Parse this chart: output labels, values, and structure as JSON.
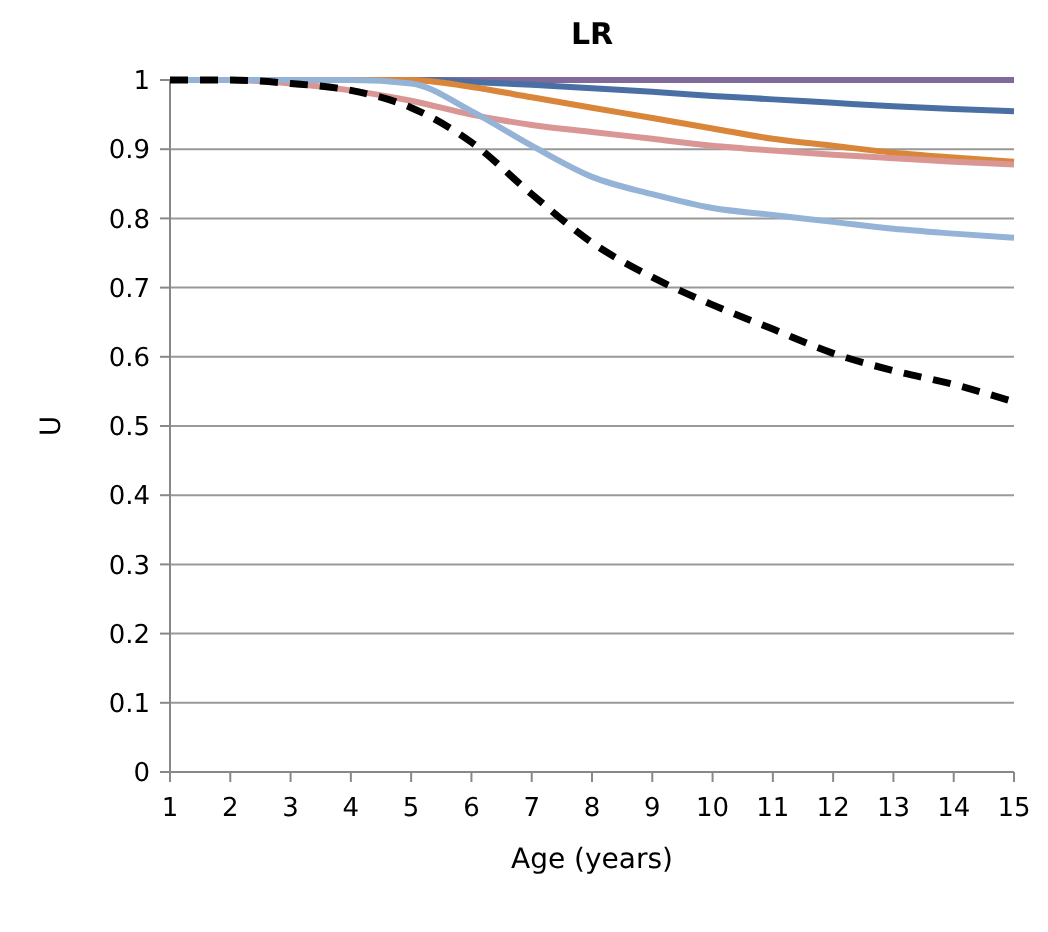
{
  "chart_data": {
    "type": "line",
    "title": "LR",
    "xlabel": "Age (years)",
    "ylabel": "U",
    "x": [
      1,
      2,
      3,
      4,
      5,
      6,
      7,
      8,
      9,
      10,
      11,
      12,
      13,
      14,
      15
    ],
    "xlim": [
      1,
      15
    ],
    "xticks": [
      1,
      2,
      3,
      4,
      5,
      6,
      7,
      8,
      9,
      10,
      11,
      12,
      13,
      14,
      15
    ],
    "ylim": [
      0,
      1
    ],
    "yticks": [
      0,
      0.1,
      0.2,
      0.3,
      0.4,
      0.5,
      0.6,
      0.7,
      0.8,
      0.9,
      1
    ],
    "grid": "y",
    "marker": "none",
    "series": [
      {
        "color": "#7f6a9a",
        "values": [
          1,
          1,
          1,
          1,
          1,
          1,
          1,
          1,
          1,
          1,
          1,
          1,
          1,
          1,
          1
        ]
      },
      {
        "color": "#4a6fa5",
        "values": [
          1,
          1,
          1,
          1,
          1,
          0.997,
          0.993,
          0.988,
          0.983,
          0.977,
          0.972,
          0.967,
          0.962,
          0.958,
          0.955
        ]
      },
      {
        "color": "#d9863a",
        "values": [
          1,
          1,
          1,
          1,
          1,
          0.99,
          0.975,
          0.96,
          0.945,
          0.93,
          0.915,
          0.905,
          0.895,
          0.888,
          0.882
        ]
      },
      {
        "color": "#d99694",
        "values": [
          1,
          1,
          0.995,
          0.985,
          0.97,
          0.95,
          0.935,
          0.925,
          0.915,
          0.905,
          0.898,
          0.892,
          0.887,
          0.882,
          0.878
        ]
      },
      {
        "color": "#95b3d7",
        "values": [
          1,
          1,
          1,
          1,
          0.995,
          0.955,
          0.905,
          0.86,
          0.835,
          0.815,
          0.805,
          0.795,
          0.785,
          0.778,
          0.772
        ]
      },
      {
        "color": "#000000",
        "line_style": "dashed",
        "values": [
          1,
          1,
          0.995,
          0.985,
          0.96,
          0.91,
          0.835,
          0.765,
          0.715,
          0.675,
          0.64,
          0.605,
          0.58,
          0.56,
          0.535
        ]
      }
    ]
  }
}
